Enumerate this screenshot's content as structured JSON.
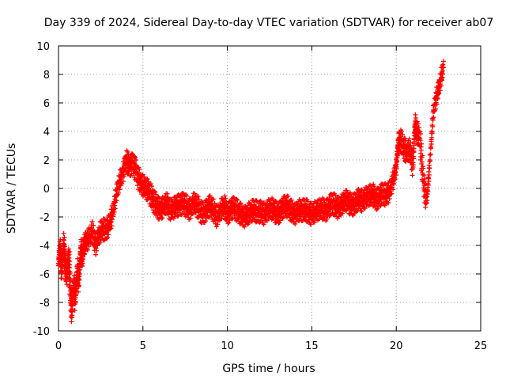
{
  "chart_data": {
    "type": "scatter",
    "title": "Day 339 of 2024, Sidereal Day-to-day VTEC variation (SDTVAR) for receiver ab07",
    "xlabel": "GPS time / hours",
    "ylabel": "SDTVAR / TECUs",
    "xlim": [
      0,
      25
    ],
    "ylim": [
      -10,
      10
    ],
    "xticks": [
      0,
      5,
      10,
      15,
      20,
      25
    ],
    "yticks": [
      -10,
      -8,
      -6,
      -4,
      -2,
      0,
      2,
      4,
      6,
      8,
      10
    ],
    "xtick_labels": [
      "0",
      "5",
      "10",
      "15",
      "20",
      "25"
    ],
    "ytick_labels": [
      "-10",
      "-8",
      "-6",
      "-4",
      "-2",
      "0",
      "2",
      "4",
      "6",
      "8",
      "10"
    ],
    "grid": true,
    "marker": "plus",
    "color": "#ff0000",
    "series": [
      {
        "name": "SDTVAR",
        "x": [
          0.0,
          0.1,
          0.2,
          0.3,
          0.4,
          0.5,
          0.6,
          0.7,
          0.8,
          0.9,
          1.0,
          1.1,
          1.2,
          1.3,
          1.4,
          1.5,
          1.6,
          1.8,
          2.0,
          2.2,
          2.4,
          2.6,
          2.8,
          3.0,
          3.2,
          3.4,
          3.6,
          3.8,
          4.0,
          4.2,
          4.4,
          4.6,
          4.8,
          5.0,
          5.2,
          5.4,
          5.6,
          5.8,
          6.0,
          6.2,
          6.4,
          6.6,
          6.8,
          7.0,
          7.2,
          7.4,
          7.6,
          7.8,
          8.0,
          8.2,
          8.4,
          8.6,
          8.8,
          9.0,
          9.2,
          9.4,
          9.6,
          9.8,
          10.0,
          10.2,
          10.4,
          10.6,
          10.8,
          11.0,
          11.2,
          11.4,
          11.6,
          11.8,
          12.0,
          12.2,
          12.4,
          12.6,
          12.8,
          13.0,
          13.2,
          13.4,
          13.6,
          13.8,
          14.0,
          14.2,
          14.4,
          14.6,
          14.8,
          15.0,
          15.2,
          15.4,
          15.6,
          15.8,
          16.0,
          16.2,
          16.4,
          16.6,
          16.8,
          17.0,
          17.2,
          17.4,
          17.6,
          17.8,
          18.0,
          18.2,
          18.4,
          18.6,
          18.8,
          19.0,
          19.2,
          19.4,
          19.6,
          19.8,
          20.0,
          20.1,
          20.2,
          20.4,
          20.6,
          20.8,
          21.0,
          21.1,
          21.2,
          21.4,
          21.6,
          21.8,
          22.0,
          22.2,
          22.4,
          22.6,
          22.8
        ],
        "y": [
          -5.0,
          -4.2,
          -6.0,
          -3.6,
          -5.5,
          -6.2,
          -4.5,
          -7.2,
          -8.9,
          -6.5,
          -8.0,
          -5.5,
          -6.8,
          -4.2,
          -5.0,
          -4.0,
          -3.8,
          -3.5,
          -3.0,
          -4.0,
          -3.2,
          -2.8,
          -3.0,
          -2.5,
          -1.8,
          -0.5,
          0.5,
          1.0,
          2.0,
          1.5,
          1.8,
          1.2,
          0.5,
          0.2,
          0.0,
          -0.3,
          -0.8,
          -1.2,
          -1.5,
          -1.3,
          -1.0,
          -1.5,
          -1.4,
          -1.2,
          -1.2,
          -1.0,
          -1.3,
          -1.5,
          -1.0,
          -1.2,
          -1.6,
          -1.8,
          -1.4,
          -1.2,
          -1.6,
          -2.0,
          -1.5,
          -1.2,
          -1.8,
          -1.5,
          -1.3,
          -1.6,
          -1.8,
          -2.0,
          -1.8,
          -1.6,
          -1.5,
          -1.7,
          -1.6,
          -1.8,
          -1.5,
          -1.4,
          -1.6,
          -1.8,
          -1.5,
          -1.2,
          -1.3,
          -1.6,
          -1.8,
          -1.5,
          -1.6,
          -1.4,
          -1.7,
          -1.8,
          -1.6,
          -1.5,
          -1.4,
          -1.6,
          -1.3,
          -1.0,
          -1.2,
          -1.4,
          -1.1,
          -0.8,
          -1.0,
          -1.2,
          -1.0,
          -0.7,
          -0.9,
          -0.6,
          -0.5,
          -0.4,
          -0.8,
          -0.6,
          -0.3,
          -0.5,
          -0.2,
          0.5,
          1.5,
          3.0,
          3.5,
          3.0,
          2.5,
          2.8,
          1.5,
          4.5,
          4.0,
          3.5,
          0.5,
          -1.0,
          2.0,
          5.5,
          6.5,
          7.5,
          8.5
        ],
        "note": "Dense band of '+' markers; values estimated from the plotted trace."
      }
    ]
  }
}
